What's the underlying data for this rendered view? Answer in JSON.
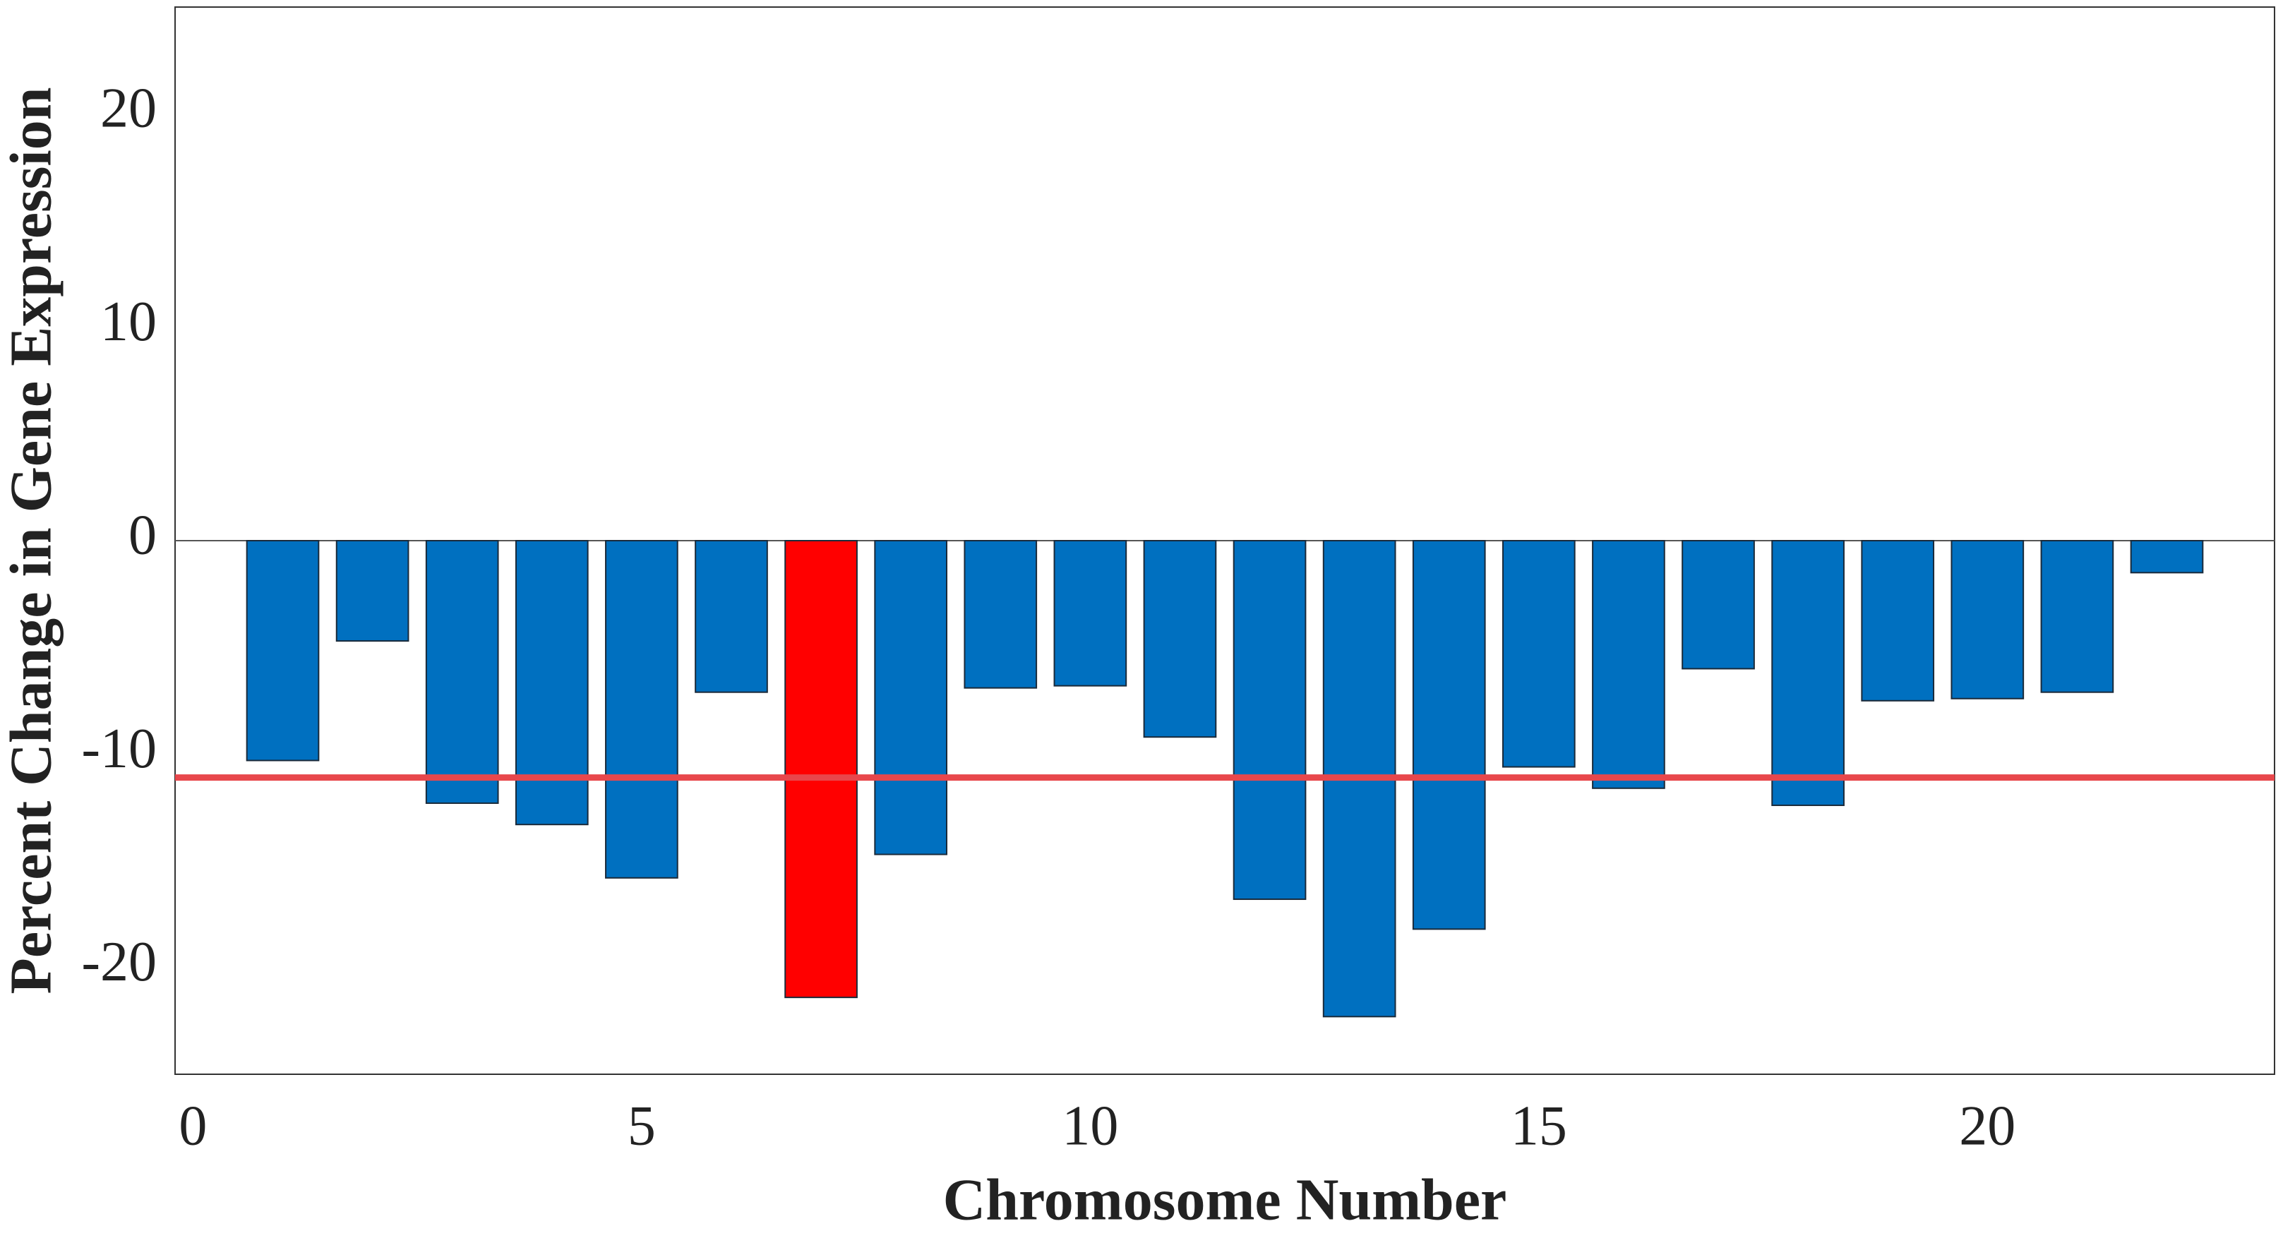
{
  "chart_data": {
    "type": "bar",
    "x_label": "Chromosome Number",
    "y_label": "Percent Change in Gene Expression",
    "x": [
      1,
      2,
      3,
      4,
      5,
      6,
      7,
      8,
      9,
      10,
      11,
      12,
      13,
      14,
      15,
      16,
      17,
      18,
      19,
      20,
      21,
      22
    ],
    "values": [
      -10.3,
      -4.7,
      -12.3,
      -13.3,
      -15.8,
      -7.1,
      -21.4,
      -14.7,
      -6.9,
      -6.8,
      -9.2,
      -16.8,
      -22.3,
      -18.2,
      -10.6,
      -11.6,
      -6.0,
      -12.4,
      -7.5,
      -7.4,
      -7.1,
      -1.5
    ],
    "colors": [
      "#0070c0",
      "#0070c0",
      "#0070c0",
      "#0070c0",
      "#0070c0",
      "#0070c0",
      "#ff0000",
      "#0070c0",
      "#0070c0",
      "#0070c0",
      "#0070c0",
      "#0070c0",
      "#0070c0",
      "#0070c0",
      "#0070c0",
      "#0070c0",
      "#0070c0",
      "#0070c0",
      "#0070c0",
      "#0070c0",
      "#0070c0",
      "#0070c0"
    ],
    "bar_width": 0.8,
    "hline": -11.1,
    "hline_color": "#e8474c",
    "xlim": [
      -0.2,
      23.2
    ],
    "ylim": [
      -25,
      25
    ],
    "xticks": [
      0,
      5,
      10,
      15,
      20
    ],
    "yticks": [
      -20,
      -10,
      0,
      10,
      20
    ],
    "grid": false
  }
}
